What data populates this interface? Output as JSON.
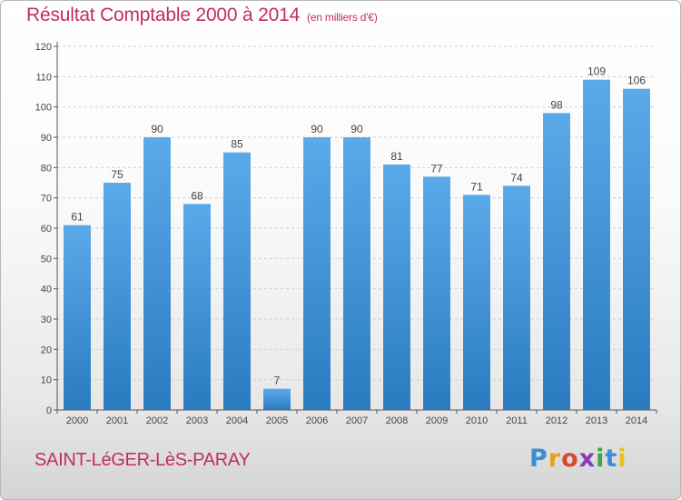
{
  "header": {
    "title": "Résultat Comptable 2000 à 2014",
    "subtitle": "(en milliers d'€)"
  },
  "footer": {
    "commune": "SAINT-LéGER-LèS-PARAY",
    "logo_text": "Proxiti"
  },
  "colors": {
    "accent_text": "#c0305a",
    "bar_top": "#5aaaea",
    "bar_bottom": "#2a7ac0"
  },
  "chart_data": {
    "type": "bar",
    "title": "Résultat Comptable 2000 à 2014",
    "subtitle": "(en milliers d'€)",
    "xlabel": "",
    "ylabel": "",
    "categories": [
      "2000",
      "2001",
      "2002",
      "2003",
      "2004",
      "2005",
      "2006",
      "2007",
      "2008",
      "2009",
      "2010",
      "2011",
      "2012",
      "2013",
      "2014"
    ],
    "values": [
      61,
      75,
      90,
      68,
      85,
      7,
      90,
      90,
      81,
      77,
      71,
      74,
      98,
      109,
      106
    ],
    "ylim": [
      0,
      120
    ],
    "yticks": [
      0,
      10,
      20,
      30,
      40,
      50,
      60,
      70,
      80,
      90,
      100,
      110,
      120
    ],
    "grid": true,
    "data_labels": true
  }
}
